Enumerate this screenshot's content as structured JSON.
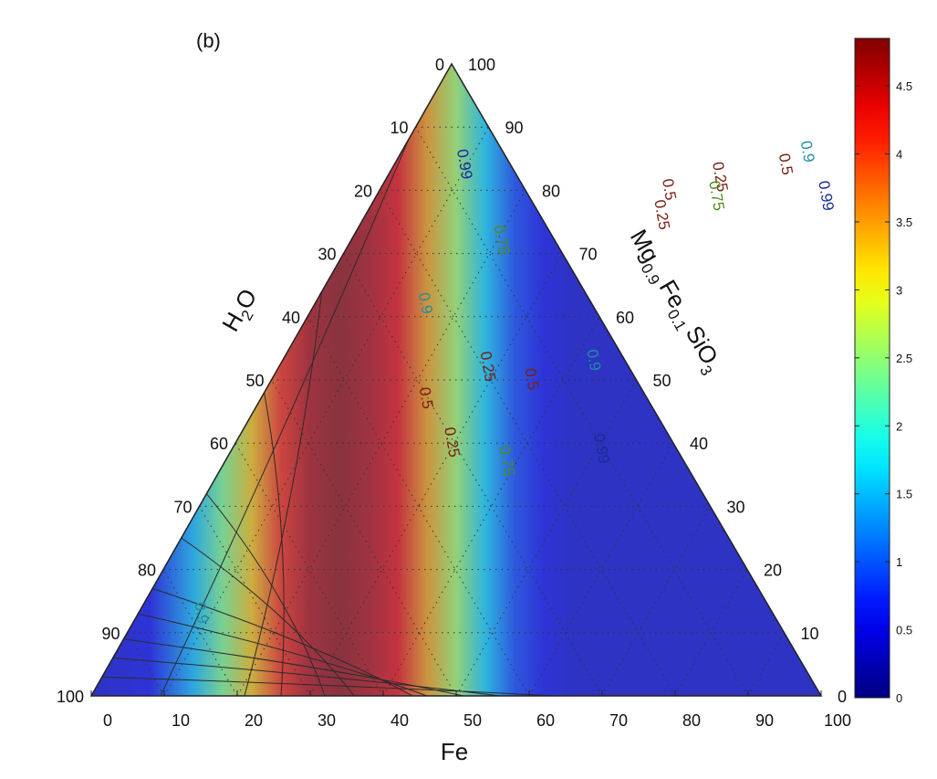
{
  "chart_data": {
    "type": "ternary-contour",
    "panel_label": "(b)",
    "axes": {
      "bottom": {
        "label": "Fe",
        "ticks": [
          "0",
          "10",
          "20",
          "30",
          "40",
          "50",
          "60",
          "70",
          "80",
          "90",
          "100"
        ]
      },
      "left": {
        "label_parts": [
          "H",
          "2",
          "O"
        ],
        "ticks": [
          "0",
          "10",
          "20",
          "30",
          "40",
          "50",
          "60",
          "70",
          "80",
          "90",
          "100"
        ]
      },
      "right": {
        "label_parts": [
          "Mg",
          "0.9",
          "Fe",
          "0.1",
          "SiO",
          "3"
        ],
        "ticks": [
          "100",
          "90",
          "80",
          "70",
          "60",
          "50",
          "40",
          "30",
          "20",
          "10",
          "0"
        ]
      }
    },
    "grid": "dotted, every 10",
    "colorbar": {
      "colormap": "jet",
      "range": [
        0,
        4.85
      ],
      "ticks": [
        "0",
        "0.5",
        "1",
        "1.5",
        "2",
        "2.5",
        "3",
        "3.5",
        "4",
        "4.5"
      ]
    },
    "field_profile_fe": {
      "fe_percent": [
        0,
        8,
        14,
        18,
        22,
        26,
        30,
        34,
        38,
        42,
        46,
        50,
        54,
        58,
        62,
        66,
        100
      ],
      "value": [
        0.4,
        0.55,
        1.5,
        2.4,
        3.3,
        4.1,
        4.6,
        4.75,
        4.6,
        4.3,
        3.5,
        2.6,
        1.6,
        0.9,
        0.55,
        0.4,
        0.4
      ]
    },
    "contours": [
      {
        "label": "0.99",
        "color": "#1b2a9a",
        "bottom_fe": 9.5,
        "top_h2o": 88,
        "label_at": [
          9,
          84
        ]
      },
      {
        "label": "0.9",
        "color": "#1f8fa0",
        "bottom_fe": 21,
        "top_h2o": 64,
        "label_at": [
          14.5,
          62
        ]
      },
      {
        "label": "0.75",
        "color": "#4f8a1e",
        "bottom_fe": 26,
        "top_h2o": 48,
        "label_at": [
          20,
          72
        ]
      },
      {
        "label": "0.5",
        "color": "#7a1e12",
        "bottom_fe": 32,
        "top_h2o": 32,
        "label_at": [
          22,
          47
        ]
      },
      {
        "label": "0.25",
        "color": "#7a1e12",
        "bottom_fe": 36,
        "top_h2o": 25,
        "label_at": [
          28,
          52
        ]
      },
      {
        "label": "0.25",
        "color": "#7a1e12",
        "bottom_fe": 44,
        "top_h2o": 17,
        "label_at": [
          29,
          40
        ]
      },
      {
        "label": "0.5",
        "color": "#7a1e12",
        "bottom_fe": 46,
        "top_h2o": 13,
        "label_at": [
          35,
          50
        ]
      },
      {
        "label": "0.75",
        "color": "#4f8a1e",
        "bottom_fe": 51,
        "top_h2o": 9,
        "label_at": [
          38,
          37
        ]
      },
      {
        "label": "0.9",
        "color": "#1f8fa0",
        "bottom_fe": 56,
        "top_h2o": 6,
        "label_at": [
          42,
          53
        ]
      },
      {
        "label": "0.99",
        "color": "#1b2a9a",
        "bottom_fe": 63.5,
        "top_h2o": 3,
        "label_at": [
          50,
          39
        ]
      }
    ],
    "extra_contour_labels": [
      {
        "label": "0.9",
        "color": "#1f8fa0",
        "at": [
          8,
          13
        ]
      },
      {
        "label": "0.25",
        "color": "#7a1e12",
        "at": [
          40,
          76
        ]
      },
      {
        "label": "0.5",
        "color": "#7a1e12",
        "at": [
          39,
          80
        ]
      },
      {
        "label": "0.25",
        "color": "#7a1e12",
        "at": [
          45,
          82
        ]
      },
      {
        "label": "0.5",
        "color": "#7a1e12",
        "at": [
          53,
          84
        ]
      },
      {
        "label": "0.75",
        "color": "#4f8a1e",
        "at": [
          46,
          79
        ]
      },
      {
        "label": "0.9",
        "color": "#1f8fa0",
        "at": [
          55,
          86
        ]
      },
      {
        "label": "0.99",
        "color": "#1b2a9a",
        "at": [
          61,
          79
        ]
      }
    ]
  }
}
